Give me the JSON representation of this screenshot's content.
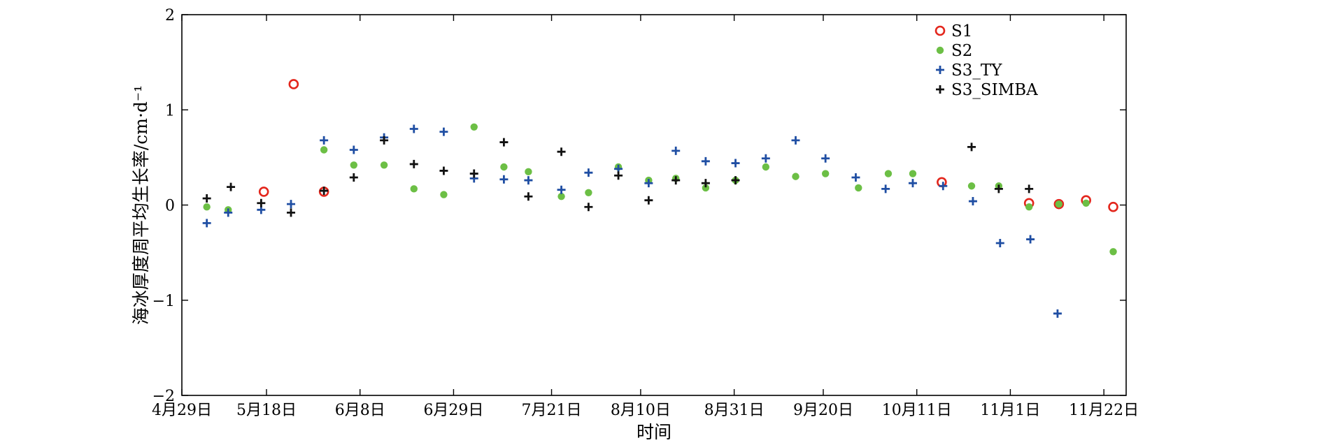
{
  "chart_data": {
    "type": "scatter",
    "xlabel": "时间",
    "ylabel": "海冰厚度周平均生长率/cm·d⁻¹",
    "ylim": [
      -2,
      2
    ],
    "xlim": [
      0,
      212
    ],
    "x_ticks": [
      {
        "day": 0,
        "label": "4月29日"
      },
      {
        "day": 19,
        "label": "5月18日"
      },
      {
        "day": 40,
        "label": "6月8日"
      },
      {
        "day": 61,
        "label": "6月29日"
      },
      {
        "day": 83,
        "label": "7月21日"
      },
      {
        "day": 103,
        "label": "8月10日"
      },
      {
        "day": 124,
        "label": "8月31日"
      },
      {
        "day": 144,
        "label": "9月20日"
      },
      {
        "day": 165,
        "label": "10月11日"
      },
      {
        "day": 186,
        "label": "11月1日"
      },
      {
        "day": 207,
        "label": "11月22日"
      }
    ],
    "y_ticks": [
      -2,
      -1,
      0,
      1,
      2
    ],
    "legend_position": "top-right",
    "series": [
      {
        "name": "S1",
        "marker": "open-circle",
        "color": "#e3261c",
        "points": [
          {
            "x": 18.4,
            "y": 0.14
          },
          {
            "x": 25.1,
            "y": 1.27
          },
          {
            "x": 31.9,
            "y": 0.14
          },
          {
            "x": 170.6,
            "y": 0.24
          },
          {
            "x": 190.2,
            "y": 0.02
          },
          {
            "x": 196.9,
            "y": 0.01
          },
          {
            "x": 203.0,
            "y": 0.05
          },
          {
            "x": 209.1,
            "y": -0.02
          }
        ]
      },
      {
        "name": "S2",
        "marker": "filled-circle",
        "color": "#6cbf45",
        "points": [
          {
            "x": 5.6,
            "y": -0.02
          },
          {
            "x": 10.4,
            "y": -0.05
          },
          {
            "x": 31.9,
            "y": 0.58
          },
          {
            "x": 38.6,
            "y": 0.42
          },
          {
            "x": 45.4,
            "y": 0.42
          },
          {
            "x": 52.1,
            "y": 0.17
          },
          {
            "x": 58.8,
            "y": 0.11
          },
          {
            "x": 65.6,
            "y": 0.82
          },
          {
            "x": 72.3,
            "y": 0.4
          },
          {
            "x": 77.8,
            "y": 0.35
          },
          {
            "x": 85.2,
            "y": 0.09
          },
          {
            "x": 91.3,
            "y": 0.13
          },
          {
            "x": 98.0,
            "y": 0.4
          },
          {
            "x": 104.8,
            "y": 0.26
          },
          {
            "x": 110.9,
            "y": 0.28
          },
          {
            "x": 117.6,
            "y": 0.18
          },
          {
            "x": 124.3,
            "y": 0.26
          },
          {
            "x": 131.1,
            "y": 0.4
          },
          {
            "x": 137.8,
            "y": 0.3
          },
          {
            "x": 144.5,
            "y": 0.33
          },
          {
            "x": 151.9,
            "y": 0.18
          },
          {
            "x": 158.6,
            "y": 0.33
          },
          {
            "x": 164.1,
            "y": 0.33
          },
          {
            "x": 177.3,
            "y": 0.2
          },
          {
            "x": 183.4,
            "y": 0.2
          },
          {
            "x": 190.2,
            "y": -0.02
          },
          {
            "x": 196.9,
            "y": 0.01
          },
          {
            "x": 203.0,
            "y": 0.02
          },
          {
            "x": 209.1,
            "y": -0.49
          }
        ]
      },
      {
        "name": "S3_TY",
        "marker": "plus",
        "color": "#1f4ea3",
        "points": [
          {
            "x": 5.6,
            "y": -0.19
          },
          {
            "x": 10.4,
            "y": -0.08
          },
          {
            "x": 17.8,
            "y": -0.05
          },
          {
            "x": 24.5,
            "y": 0.01
          },
          {
            "x": 31.9,
            "y": 0.68
          },
          {
            "x": 38.6,
            "y": 0.58
          },
          {
            "x": 45.4,
            "y": 0.71
          },
          {
            "x": 52.1,
            "y": 0.8
          },
          {
            "x": 58.8,
            "y": 0.77
          },
          {
            "x": 65.6,
            "y": 0.28
          },
          {
            "x": 72.3,
            "y": 0.27
          },
          {
            "x": 77.8,
            "y": 0.26
          },
          {
            "x": 85.2,
            "y": 0.16
          },
          {
            "x": 91.3,
            "y": 0.34
          },
          {
            "x": 98.0,
            "y": 0.38
          },
          {
            "x": 104.8,
            "y": 0.23
          },
          {
            "x": 110.9,
            "y": 0.57
          },
          {
            "x": 117.6,
            "y": 0.46
          },
          {
            "x": 124.3,
            "y": 0.44
          },
          {
            "x": 131.1,
            "y": 0.49
          },
          {
            "x": 137.8,
            "y": 0.68
          },
          {
            "x": 144.5,
            "y": 0.49
          },
          {
            "x": 151.3,
            "y": 0.29
          },
          {
            "x": 158.0,
            "y": 0.17
          },
          {
            "x": 164.1,
            "y": 0.23
          },
          {
            "x": 170.9,
            "y": 0.2
          },
          {
            "x": 177.6,
            "y": 0.04
          },
          {
            "x": 183.7,
            "y": -0.4
          },
          {
            "x": 190.5,
            "y": -0.36
          },
          {
            "x": 196.6,
            "y": -1.14
          }
        ]
      },
      {
        "name": "S3_SIMBA",
        "marker": "plus",
        "color": "#111111",
        "points": [
          {
            "x": 5.6,
            "y": 0.07
          },
          {
            "x": 11.0,
            "y": 0.19
          },
          {
            "x": 17.8,
            "y": 0.02
          },
          {
            "x": 24.5,
            "y": -0.08
          },
          {
            "x": 31.9,
            "y": 0.15
          },
          {
            "x": 38.6,
            "y": 0.29
          },
          {
            "x": 45.4,
            "y": 0.68
          },
          {
            "x": 52.1,
            "y": 0.43
          },
          {
            "x": 58.8,
            "y": 0.36
          },
          {
            "x": 65.6,
            "y": 0.33
          },
          {
            "x": 72.3,
            "y": 0.66
          },
          {
            "x": 77.8,
            "y": 0.09
          },
          {
            "x": 85.2,
            "y": 0.56
          },
          {
            "x": 91.3,
            "y": -0.02
          },
          {
            "x": 98.0,
            "y": 0.31
          },
          {
            "x": 104.8,
            "y": 0.05
          },
          {
            "x": 110.9,
            "y": 0.26
          },
          {
            "x": 117.6,
            "y": 0.23
          },
          {
            "x": 124.3,
            "y": 0.26
          },
          {
            "x": 177.3,
            "y": 0.61
          },
          {
            "x": 183.4,
            "y": 0.17
          },
          {
            "x": 190.2,
            "y": 0.17
          }
        ]
      }
    ]
  }
}
